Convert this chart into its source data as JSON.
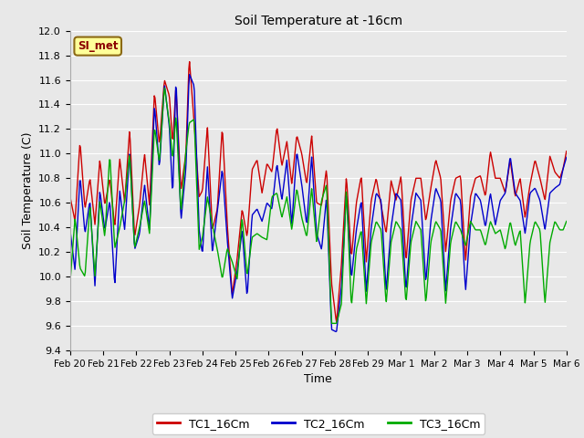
{
  "title": "Soil Temperature at -16cm",
  "xlabel": "Time",
  "ylabel": "Soil Temperature (C)",
  "ylim": [
    9.4,
    12.0
  ],
  "yticks": [
    9.4,
    9.6,
    9.8,
    10.0,
    10.2,
    10.4,
    10.6,
    10.8,
    11.0,
    11.2,
    11.4,
    11.6,
    11.8,
    12.0
  ],
  "background_color": "#e8e8e8",
  "plot_bg_color": "#e8e8e8",
  "grid_color": "#ffffff",
  "tc1_color": "#cc0000",
  "tc2_color": "#0000cc",
  "tc3_color": "#00aa00",
  "legend_label1": "TC1_16Cm",
  "legend_label2": "TC2_16Cm",
  "legend_label3": "TC3_16Cm",
  "watermark": "SI_met",
  "xtick_labels": [
    "Feb 20",
    "Feb 21",
    "Feb 22",
    "Feb 23",
    "Feb 24",
    "Feb 25",
    "Feb 26",
    "Feb 27",
    "Feb 28",
    "Feb 29",
    "Mar 1",
    "Mar 2",
    "Mar 3",
    "Mar 4",
    "Mar 5",
    "Mar 6"
  ]
}
